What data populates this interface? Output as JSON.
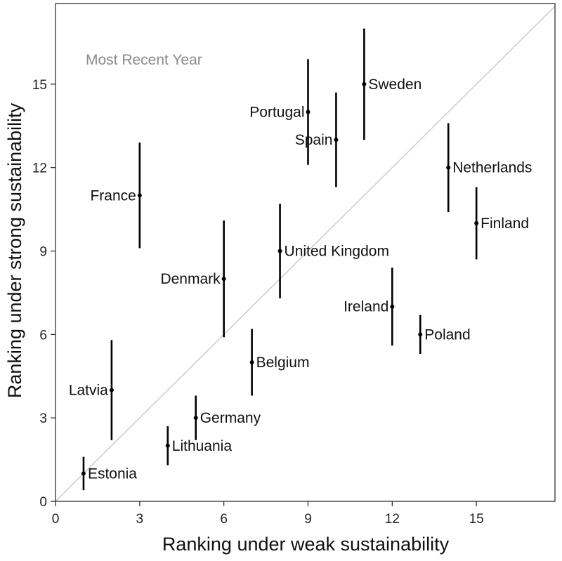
{
  "chart_data": {
    "type": "scatter",
    "annotation": "Most Recent Year",
    "xlabel": "Ranking under weak sustainability",
    "ylabel": "Ranking under strong sustainability",
    "xlim": [
      0,
      17.8
    ],
    "ylim": [
      0,
      17.9
    ],
    "xticks": [
      0,
      3,
      6,
      9,
      12,
      15
    ],
    "yticks": [
      0,
      3,
      6,
      9,
      12,
      15
    ],
    "diagonal": true,
    "grid": false,
    "legend": "none",
    "colors": {
      "points": "#000000",
      "diagonal": "#cfcfcf",
      "annotation": "#8a8a8a"
    },
    "points": [
      {
        "label": "Estonia",
        "x": 1,
        "y": 1,
        "ylow": 0.4,
        "yhigh": 1.6,
        "side": "right"
      },
      {
        "label": "Latvia",
        "x": 2,
        "y": 4,
        "ylow": 2.2,
        "yhigh": 5.8,
        "side": "left"
      },
      {
        "label": "France",
        "x": 3,
        "y": 11,
        "ylow": 9.1,
        "yhigh": 12.9,
        "side": "left"
      },
      {
        "label": "Lithuania",
        "x": 4,
        "y": 2,
        "ylow": 1.3,
        "yhigh": 2.7,
        "side": "right"
      },
      {
        "label": "Germany",
        "x": 5,
        "y": 3,
        "ylow": 2.2,
        "yhigh": 3.8,
        "side": "right"
      },
      {
        "label": "Denmark",
        "x": 6,
        "y": 8,
        "ylow": 5.9,
        "yhigh": 10.1,
        "side": "left"
      },
      {
        "label": "Belgium",
        "x": 7,
        "y": 5,
        "ylow": 3.8,
        "yhigh": 6.2,
        "side": "right"
      },
      {
        "label": "United Kingdom",
        "x": 8,
        "y": 9,
        "ylow": 7.3,
        "yhigh": 10.7,
        "side": "right"
      },
      {
        "label": "Portugal",
        "x": 9,
        "y": 14,
        "ylow": 12.1,
        "yhigh": 15.9,
        "side": "left"
      },
      {
        "label": "Spain",
        "x": 10,
        "y": 13,
        "ylow": 11.3,
        "yhigh": 14.7,
        "side": "left"
      },
      {
        "label": "Sweden",
        "x": 11,
        "y": 15,
        "ylow": 13.0,
        "yhigh": 17.0,
        "side": "right"
      },
      {
        "label": "Ireland",
        "x": 12,
        "y": 7,
        "ylow": 5.6,
        "yhigh": 8.4,
        "side": "left"
      },
      {
        "label": "Poland",
        "x": 13,
        "y": 6,
        "ylow": 5.3,
        "yhigh": 6.7,
        "side": "right"
      },
      {
        "label": "Netherlands",
        "x": 14,
        "y": 12,
        "ylow": 10.4,
        "yhigh": 13.6,
        "side": "right"
      },
      {
        "label": "Finland",
        "x": 15,
        "y": 10,
        "ylow": 8.7,
        "yhigh": 11.3,
        "side": "right"
      }
    ]
  }
}
